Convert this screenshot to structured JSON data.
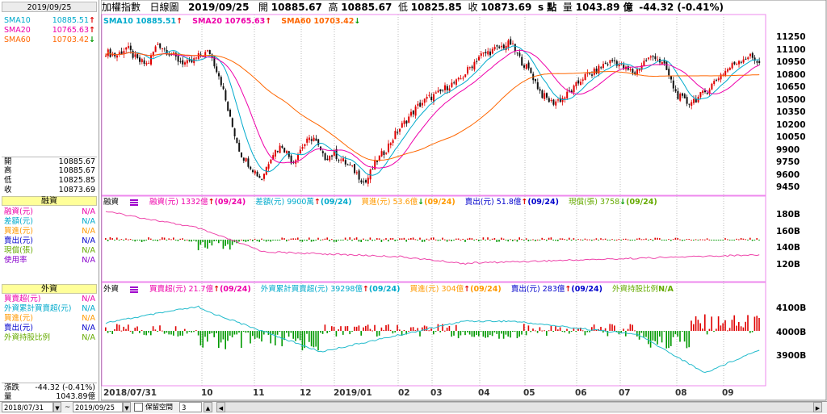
{
  "side": {
    "date": "2019/09/25",
    "sma": [
      {
        "label": "SMA10",
        "value": "10885.51",
        "arrow": "↑",
        "color": "#00aacc",
        "arrowColor": "#e00000"
      },
      {
        "label": "SMA20",
        "value": "10765.63",
        "arrow": "↑",
        "color": "#ee00aa",
        "arrowColor": "#e00000"
      },
      {
        "label": "SMA60",
        "value": "10703.42",
        "arrow": "↓",
        "color": "#ff6600",
        "arrowColor": "#009900"
      }
    ],
    "ohlc": [
      {
        "label": "開",
        "value": "10885.67"
      },
      {
        "label": "高",
        "value": "10885.67"
      },
      {
        "label": "低",
        "value": "10825.85"
      },
      {
        "label": "收",
        "value": "10873.69"
      }
    ],
    "margin_header": "融資",
    "margin": [
      {
        "label": "融資(元)",
        "value": "N/A",
        "color": "#ee00aa"
      },
      {
        "label": "差額(元)",
        "value": "N/A",
        "color": "#00aacc"
      },
      {
        "label": "買進(元)",
        "value": "N/A",
        "color": "#ff9900"
      },
      {
        "label": "賣出(元)",
        "value": "N/A",
        "color": "#0000cc"
      },
      {
        "label": "現償(張)",
        "value": "N/A",
        "color": "#66aa00"
      },
      {
        "label": "使用率",
        "value": "N/A",
        "color": "#8800cc"
      }
    ],
    "foreign_header": "外資",
    "foreign": [
      {
        "label": "買賣超(元)",
        "value": "N/A",
        "color": "#ee00aa"
      },
      {
        "label": "外資累計買賣超(元)",
        "value": "N/A",
        "color": "#00aacc"
      },
      {
        "label": "買進(元)",
        "value": "N/A",
        "color": "#ff9900"
      },
      {
        "label": "賣出(元)",
        "value": "N/A",
        "color": "#0000cc"
      },
      {
        "label": "外資持股比例",
        "value": "N/A",
        "color": "#66aa00"
      }
    ],
    "change_label": "漲跌",
    "change_value": "-44.32 (-0.41%)",
    "volume_label": "量",
    "volume_value": "1043.89億"
  },
  "top": {
    "name": "加權指數",
    "type": "日線圖",
    "date": "2019/09/25",
    "open_label": "開",
    "open": "10885.67",
    "high_label": "高",
    "high": "10885.67",
    "low_label": "低",
    "low": "10825.85",
    "close_label": "收",
    "close": "10873.69",
    "unit": "s 點",
    "vol_label": "量",
    "vol": "1043.89 億",
    "change": "-44.32 (-0.41%)"
  },
  "price_legend": [
    {
      "text": "SMA10 10885.51",
      "arrow": "↑",
      "color": "#00aacc",
      "arrowColor": "#e00000"
    },
    {
      "text": "SMA20 10765.63",
      "arrow": "↑",
      "color": "#ee00aa",
      "arrowColor": "#e00000"
    },
    {
      "text": "SMA60 10703.42",
      "arrow": "↓",
      "color": "#ff6600",
      "arrowColor": "#009900"
    }
  ],
  "price_axis": [
    "11250",
    "11100",
    "10950",
    "10800",
    "10650",
    "10500",
    "10350",
    "10200",
    "10050",
    "9900",
    "9750",
    "9600",
    "9450"
  ],
  "margin_legend": {
    "title": "融資",
    "items": [
      {
        "text": "融資(元) 1332億",
        "arrow": "↑",
        "date": "(09/24)",
        "color": "#ee00aa",
        "arrowColor": "#e00000"
      },
      {
        "text": "差額(元) 9900萬",
        "arrow": "↑",
        "date": "(09/24)",
        "color": "#00aacc",
        "arrowColor": "#e00000"
      },
      {
        "text": "買進(元) 53.6億",
        "arrow": "↓",
        "date": "(09/24)",
        "color": "#ff9900",
        "arrowColor": "#009900"
      },
      {
        "text": "賣出(元) 51.8億",
        "arrow": "↑",
        "date": "(09/24)",
        "color": "#0000cc",
        "arrowColor": "#e00000"
      },
      {
        "text": "現償(張) 3758",
        "arrow": "↓",
        "date": "(09/24)",
        "color": "#66aa00",
        "arrowColor": "#009900"
      }
    ]
  },
  "margin_axis": [
    "180B",
    "160B",
    "140B",
    "120B"
  ],
  "foreign_legend": {
    "title": "外資",
    "items": [
      {
        "text": "買賣超(元) 21.7億",
        "arrow": "↑",
        "date": "(09/24)",
        "color": "#ee00aa",
        "arrowColor": "#e00000"
      },
      {
        "text": "外資累計買賣超(元) 39298億",
        "arrow": "↑",
        "date": "(09/24)",
        "color": "#00aacc",
        "arrowColor": "#e00000"
      },
      {
        "text": "買進(元) 304億",
        "arrow": "↑",
        "date": "(09/24)",
        "color": "#ff9900",
        "arrowColor": "#e00000"
      },
      {
        "text": "賣出(元) 283億",
        "arrow": "↑",
        "date": "(09/24)",
        "color": "#0000cc",
        "arrowColor": "#e00000"
      },
      {
        "text": "外資持股比例",
        "arrow": "",
        "date": "N/A",
        "color": "#66aa00",
        "arrowColor": "#66aa00"
      }
    ]
  },
  "foreign_axis": [
    "4100B",
    "4000B",
    "3900B"
  ],
  "x_labels": [
    "2018/07/31",
    "10",
    "11",
    "12",
    "2019/01",
    "02",
    "03",
    "04",
    "05",
    "06",
    "07",
    "08",
    "09"
  ],
  "bottom": {
    "from": "2018/07/31",
    "to": "2019/09/25",
    "tilde": "~",
    "keep": "保留空間",
    "keep_value": "3"
  },
  "colors": {
    "up": "#e00000",
    "down": "#009900",
    "sma10": "#00aacc",
    "sma20": "#ee00aa",
    "sma60": "#ff6600",
    "border": "#ee88ee"
  },
  "chart_data": {
    "type": "candlestick",
    "x_range": [
      "2018/07/31",
      "2019/09/25"
    ],
    "ylim": [
      9350,
      11400
    ],
    "months": [
      "2018/07/31",
      "10",
      "11",
      "12",
      "2019/01",
      "02",
      "03",
      "04",
      "05",
      "06",
      "07",
      "08",
      "09"
    ],
    "close_path": [
      11000,
      10950,
      11050,
      10900,
      10850,
      11100,
      11000,
      10900,
      10850,
      10950,
      11000,
      10700,
      10200,
      9800,
      9650,
      9500,
      9800,
      9900,
      9700,
      9900,
      10000,
      9750,
      9800,
      9700,
      9600,
      9450,
      9700,
      9850,
      10050,
      10200,
      10350,
      10450,
      10500,
      10600,
      10650,
      10800,
      10950,
      11000,
      11050,
      11100,
      10900,
      10750,
      10500,
      10400,
      10450,
      10550,
      10700,
      10750,
      10850,
      10900,
      10800,
      10750,
      10900,
      10950,
      10800,
      10500,
      10400,
      10450,
      10550,
      10700,
      10800,
      10900,
      10950,
      10880
    ]
  }
}
